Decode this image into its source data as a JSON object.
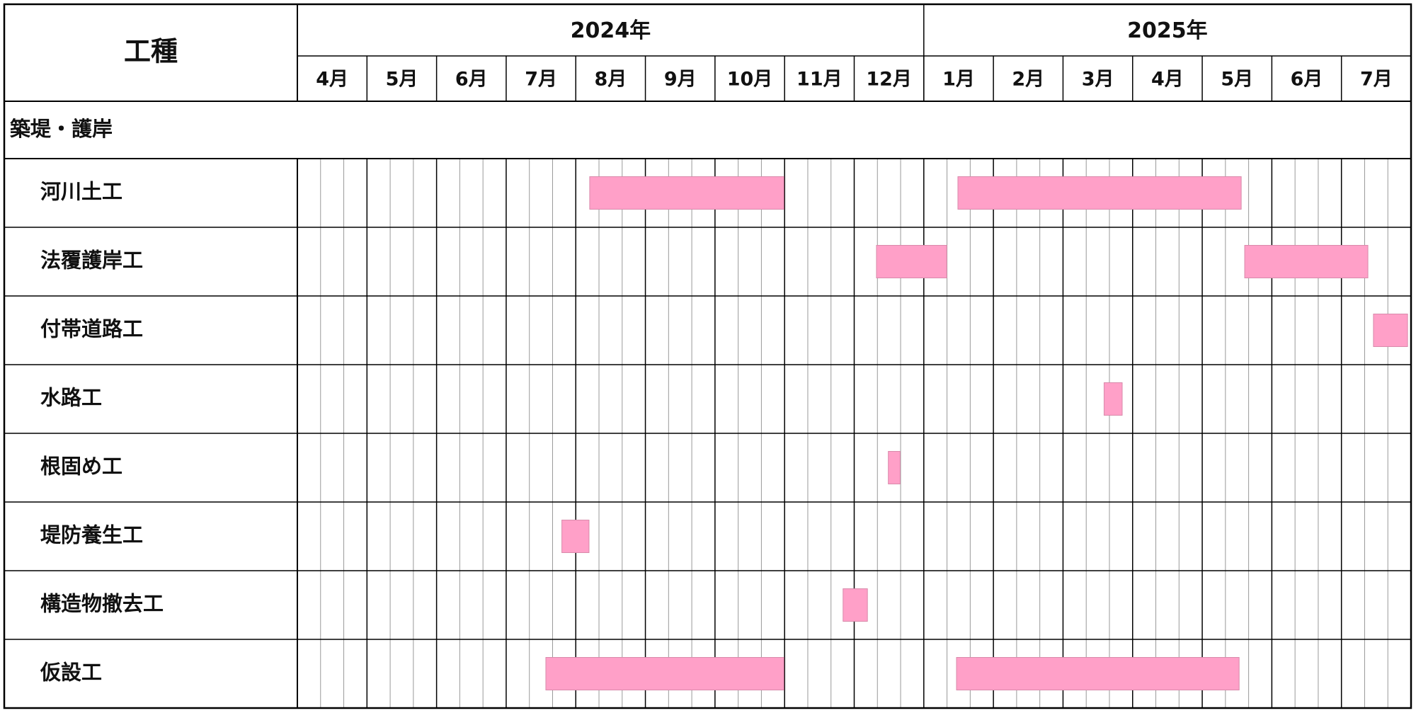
{
  "chart_data": {
    "type": "gantt",
    "corner_label": "工種",
    "years": [
      {
        "label": "2024年",
        "months": [
          "4月",
          "5月",
          "6月",
          "7月",
          "8月",
          "9月",
          "10月",
          "11月",
          "12月"
        ]
      },
      {
        "label": "2025年",
        "months": [
          "1月",
          "2月",
          "3月",
          "4月",
          "5月",
          "6月",
          "7月"
        ]
      }
    ],
    "xlim": [
      0,
      16
    ],
    "color": "#ffa0c8",
    "section": "築堤・護岸",
    "tasks": [
      {
        "name": "河川土工",
        "bars": [
          [
            4.2,
            6.99
          ],
          [
            9.49,
            13.56
          ]
        ]
      },
      {
        "name": "法覆護岸工",
        "bars": [
          [
            8.32,
            9.33
          ],
          [
            13.61,
            15.38
          ]
        ]
      },
      {
        "name": "付帯道路工",
        "bars": [
          [
            15.46,
            15.95
          ]
        ]
      },
      {
        "name": "水路工",
        "bars": [
          [
            11.59,
            11.85
          ]
        ]
      },
      {
        "name": "根固め工",
        "bars": [
          [
            8.49,
            8.66
          ]
        ]
      },
      {
        "name": "堤防養生工",
        "bars": [
          [
            3.8,
            4.19
          ]
        ]
      },
      {
        "name": "構造物撤去工",
        "bars": [
          [
            7.84,
            8.19
          ]
        ]
      },
      {
        "name": "仮設工",
        "bars": [
          [
            3.57,
            6.99
          ],
          [
            9.47,
            13.53
          ]
        ]
      }
    ]
  }
}
